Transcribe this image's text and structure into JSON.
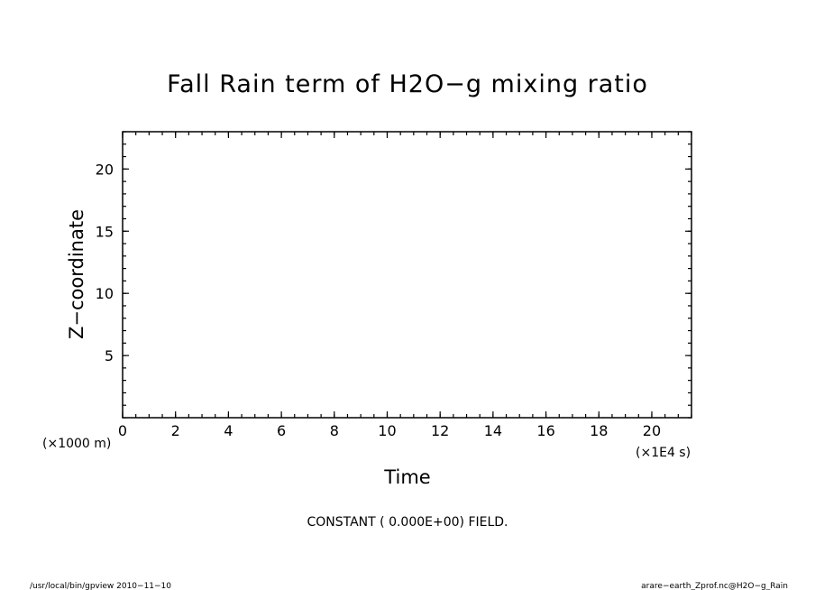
{
  "chart_data": {
    "type": "heatmap",
    "title": "Fall Rain term of H2O−g mixing ratio",
    "xlabel": "Time",
    "ylabel": "Z−coordinate",
    "x_unit": "(×1E4 s)",
    "y_unit": "(×1000 m)",
    "xlim": [
      0,
      21.5
    ],
    "ylim": [
      0,
      23
    ],
    "x_ticks": [
      0,
      2,
      4,
      6,
      8,
      10,
      12,
      14,
      16,
      18,
      20
    ],
    "y_ticks": [
      5,
      10,
      15,
      20
    ],
    "x_minor_step": 0.5,
    "y_minor_step": 1,
    "field_note": "CONSTANT ( 0.000E+00) FIELD.",
    "values": []
  },
  "footer": {
    "left": "/usr/local/bin/gpview   2010−11−10",
    "right": "arare−earth_Zprof.nc@H2O−g_Rain"
  }
}
